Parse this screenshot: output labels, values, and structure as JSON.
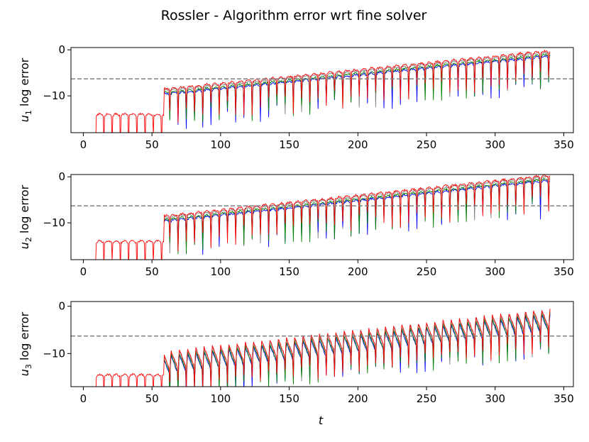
{
  "figure": {
    "title": "Rossler - Algorithm error wrt fine solver",
    "xlabel": "t"
  },
  "colors": {
    "series": [
      "#808080",
      "#0000ff",
      "#008000",
      "#ff0000"
    ],
    "threshold": "#808080",
    "axes": "#000000"
  },
  "chart_data": [
    {
      "type": "line",
      "title": "",
      "xlabel": "",
      "ylabel_sym": "u",
      "ylabel_sub": "1",
      "ylabel_rest": " log error",
      "xlim": [
        -9,
        357
      ],
      "ylim": [
        -18,
        0.5
      ],
      "xticks": [
        0,
        50,
        100,
        150,
        200,
        250,
        300,
        350
      ],
      "yticks": [
        0,
        -10
      ],
      "ytick_labels": [
        "0",
        "−10"
      ],
      "threshold": -6.3,
      "grid": false,
      "series_colors": [
        "#808080",
        "#0000ff",
        "#008000",
        "#ff0000"
      ],
      "trend": {
        "t_start": 9,
        "t_jump": 59,
        "t_end": 340,
        "pre_jump_level": -15,
        "post_jump_level": -9.5,
        "end_level": -1.2,
        "dip_depth": 5.5,
        "period": 6
      }
    },
    {
      "type": "line",
      "title": "",
      "xlabel": "",
      "ylabel_sym": "u",
      "ylabel_sub": "2",
      "ylabel_rest": " log error",
      "xlim": [
        -9,
        357
      ],
      "ylim": [
        -18,
        0.5
      ],
      "xticks": [
        0,
        50,
        100,
        150,
        200,
        250,
        300,
        350
      ],
      "yticks": [
        0,
        -10
      ],
      "ytick_labels": [
        "0",
        "−10"
      ],
      "threshold": -6.3,
      "grid": false,
      "series_colors": [
        "#808080",
        "#0000ff",
        "#008000",
        "#ff0000"
      ],
      "trend": {
        "t_start": 9,
        "t_jump": 59,
        "t_end": 340,
        "pre_jump_level": -15,
        "post_jump_level": -9.5,
        "end_level": -0.6,
        "dip_depth": 5.5,
        "period": 6
      }
    },
    {
      "type": "line",
      "title": "",
      "xlabel": "t",
      "ylabel_sym": "u",
      "ylabel_sub": "3",
      "ylabel_rest": " log error",
      "xlim": [
        -9,
        357
      ],
      "ylim": [
        -17,
        1
      ],
      "xticks": [
        0,
        50,
        100,
        150,
        200,
        250,
        300,
        350
      ],
      "yticks": [
        0,
        -10
      ],
      "ytick_labels": [
        "0",
        "−10"
      ],
      "threshold": -6.3,
      "grid": false,
      "series_colors": [
        "#808080",
        "#0000ff",
        "#008000",
        "#ff0000"
      ],
      "trend": {
        "t_start": 9,
        "t_jump": 59,
        "t_end": 340,
        "pre_jump_level": -15.5,
        "post_jump_level": -12,
        "end_level": -3,
        "dip_depth": 4,
        "period": 6
      }
    }
  ]
}
